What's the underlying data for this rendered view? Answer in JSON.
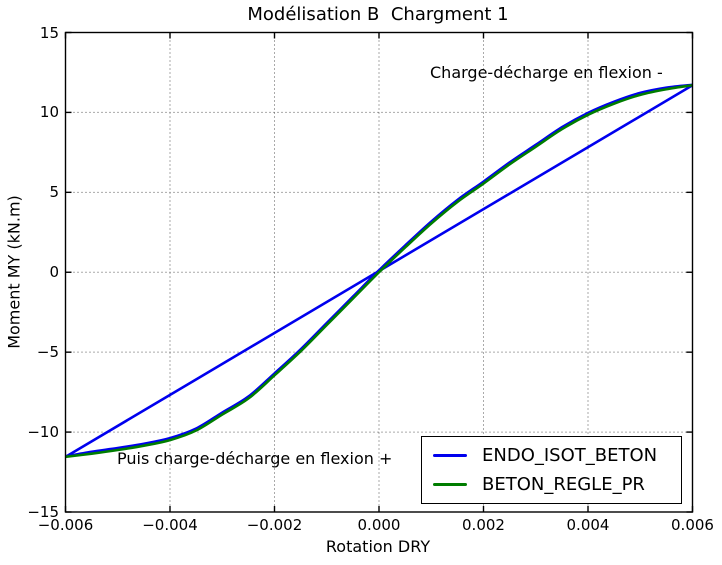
{
  "annotations": {
    "top_right": "Charge-décharge en flexion -",
    "bottom_left": "Puis charge-décharge en flexion +"
  },
  "legend": {
    "entries": [
      {
        "label": "ENDO_ISOT_BETON",
        "color": "#0000ee"
      },
      {
        "label": "BETON_REGLE_PR",
        "color": "#007d00"
      }
    ]
  },
  "chart_data": {
    "type": "line",
    "title": "Modélisation B  Chargment 1",
    "xlabel": "Rotation DRY",
    "ylabel": "Moment MY (kN.m)",
    "xlim": [
      -0.006,
      0.006
    ],
    "ylim": [
      -15,
      15
    ],
    "grid": "dotted",
    "legend_position": "lower right",
    "xticks": {
      "values": [
        -0.006,
        -0.004,
        -0.002,
        0.0,
        0.002,
        0.004,
        0.006
      ],
      "labels": [
        "−0.006",
        "−0.004",
        "−0.002",
        "0.000",
        "0.002",
        "0.004",
        "0.006"
      ]
    },
    "yticks": {
      "values": [
        15,
        10,
        5,
        0,
        -5,
        -10,
        -15
      ],
      "labels": [
        "15",
        "10",
        "5",
        "0",
        "−5",
        "−10",
        "−15"
      ]
    },
    "series": [
      {
        "name": "ENDO_ISOT_BETON",
        "color": "#0000ee",
        "segments": [
          {
            "desc": "secant unload-reload line through origin",
            "x": [
              -0.006,
              0.006
            ],
            "y": [
              -11.55,
              11.7
            ]
          },
          {
            "desc": "nonlinear envelope (coincides with BETON_REGLE_PR)",
            "x": [
              -0.006,
              -0.0055,
              -0.005,
              -0.0045,
              -0.004,
              -0.0035,
              -0.003,
              -0.0025,
              -0.002,
              -0.0015,
              -0.001,
              -0.0005,
              0,
              0.0005,
              0.001,
              0.0015,
              0.002,
              0.0025,
              0.003,
              0.0035,
              0.004,
              0.0045,
              0.005,
              0.0055,
              0.006
            ],
            "y": [
              -11.52,
              -11.23,
              -11.0,
              -10.73,
              -10.38,
              -9.78,
              -8.78,
              -7.78,
              -6.33,
              -4.83,
              -3.18,
              -1.53,
              0.12,
              1.67,
              3.17,
              4.52,
              5.67,
              6.87,
              7.97,
              9.07,
              9.97,
              10.67,
              11.22,
              11.55,
              11.73
            ]
          }
        ]
      },
      {
        "name": "BETON_REGLE_PR",
        "color": "#007d00",
        "segments": [
          {
            "desc": "nonlinear moment-rotation curve",
            "x": [
              -0.006,
              -0.0055,
              -0.005,
              -0.0045,
              -0.004,
              -0.0035,
              -0.003,
              -0.0025,
              -0.002,
              -0.0015,
              -0.001,
              -0.0005,
              0,
              0.0005,
              0.001,
              0.0015,
              0.002,
              0.0025,
              0.003,
              0.0035,
              0.004,
              0.0045,
              0.005,
              0.0055,
              0.006
            ],
            "y": [
              -11.55,
              -11.35,
              -11.12,
              -10.85,
              -10.5,
              -9.9,
              -8.9,
              -7.9,
              -6.45,
              -4.95,
              -3.3,
              -1.65,
              0,
              1.55,
              3.05,
              4.4,
              5.55,
              6.75,
              7.85,
              8.95,
              9.85,
              10.55,
              11.1,
              11.45,
              11.7
            ]
          }
        ]
      }
    ]
  }
}
